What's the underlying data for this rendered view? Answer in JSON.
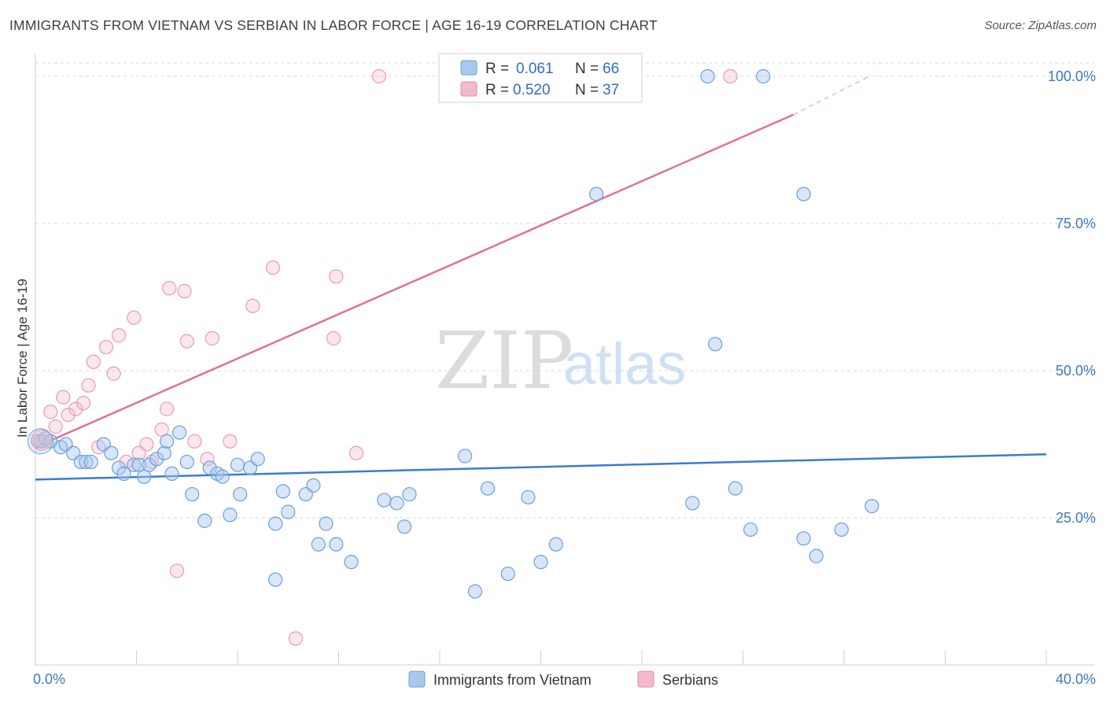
{
  "title": "IMMIGRANTS FROM VIETNAM VS SERBIAN IN LABOR FORCE | AGE 16-19 CORRELATION CHART",
  "source": "Source: ZipAtlas.com",
  "watermark": {
    "zip": "ZIP",
    "atlas": "atlas"
  },
  "colors": {
    "blue": "#3a7bd5",
    "blue_fill": "#a9c8ee",
    "pink": "#e07097",
    "pink_fill": "#f4b9cb",
    "tick": "#3b78c4",
    "grid": "#d9d9d9"
  },
  "legend": {
    "rows": [
      {
        "r_label": "R =",
        "r_value": "0.061",
        "n_label": "N =",
        "n_value": "66"
      },
      {
        "r_label": "R =",
        "r_value": "0.520",
        "n_label": "N =",
        "n_value": "37"
      }
    ]
  },
  "bottom_legend": [
    "Immigrants from Vietnam",
    "Serbians"
  ],
  "chart_data": {
    "type": "scatter",
    "title": "IMMIGRANTS FROM VIETNAM VS SERBIAN IN LABOR FORCE | AGE 16-19 CORRELATION CHART",
    "xlabel": "",
    "ylabel": "In Labor Force | Age 16-19",
    "xlim": [
      0,
      40
    ],
    "ylim": [
      0,
      100
    ],
    "x_tick_labels": [
      "0.0%",
      "40.0%"
    ],
    "y_tick_labels": [
      "25.0%",
      "50.0%",
      "75.0%",
      "100.0%"
    ],
    "y_ticks": [
      25,
      50,
      75,
      100
    ],
    "grid": true,
    "series": [
      {
        "name": "Immigrants from Vietnam",
        "color": "#3a7bd5",
        "points": [
          [
            0.2,
            38.0
          ],
          [
            0.4,
            38.5
          ],
          [
            0.6,
            38.0
          ],
          [
            1.0,
            37.0
          ],
          [
            1.2,
            37.5
          ],
          [
            1.5,
            36.0
          ],
          [
            1.8,
            34.5
          ],
          [
            2.0,
            34.5
          ],
          [
            2.7,
            37.5
          ],
          [
            3.0,
            36.0
          ],
          [
            3.3,
            33.5
          ],
          [
            3.5,
            32.5
          ],
          [
            3.9,
            34.0
          ],
          [
            4.1,
            34.0
          ],
          [
            4.3,
            32.0
          ],
          [
            4.5,
            34.0
          ],
          [
            4.8,
            35.0
          ],
          [
            5.1,
            36.0
          ],
          [
            5.2,
            38.0
          ],
          [
            5.4,
            32.5
          ],
          [
            5.7,
            39.5
          ],
          [
            6.0,
            34.5
          ],
          [
            6.2,
            29.0
          ],
          [
            6.7,
            24.5
          ],
          [
            6.9,
            33.5
          ],
          [
            7.2,
            32.5
          ],
          [
            7.4,
            32.0
          ],
          [
            7.7,
            25.5
          ],
          [
            8.0,
            34.0
          ],
          [
            8.1,
            29.0
          ],
          [
            8.5,
            33.5
          ],
          [
            8.8,
            35.0
          ],
          [
            9.5,
            24.0
          ],
          [
            9.5,
            14.5
          ],
          [
            9.8,
            29.5
          ],
          [
            10.0,
            26.0
          ],
          [
            10.7,
            29.0
          ],
          [
            11.0,
            30.5
          ],
          [
            11.2,
            20.5
          ],
          [
            11.5,
            24.0
          ],
          [
            11.9,
            20.5
          ],
          [
            12.5,
            17.5
          ],
          [
            13.8,
            28.0
          ],
          [
            14.3,
            27.5
          ],
          [
            14.6,
            23.5
          ],
          [
            14.8,
            29.0
          ],
          [
            17.0,
            35.5
          ],
          [
            17.4,
            12.5
          ],
          [
            17.9,
            30.0
          ],
          [
            18.7,
            15.5
          ],
          [
            19.5,
            28.5
          ],
          [
            20.0,
            17.5
          ],
          [
            20.6,
            20.5
          ],
          [
            22.2,
            80.0
          ],
          [
            26.0,
            27.5
          ],
          [
            26.9,
            54.5
          ],
          [
            27.7,
            30.0
          ],
          [
            26.6,
            100.0
          ],
          [
            28.3,
            23.0
          ],
          [
            28.8,
            100.0
          ],
          [
            30.4,
            21.5
          ],
          [
            30.4,
            80.0
          ],
          [
            30.9,
            18.5
          ],
          [
            31.9,
            23.0
          ],
          [
            33.1,
            27.0
          ],
          [
            2.2,
            34.5
          ]
        ],
        "trend": {
          "x": [
            0,
            40
          ],
          "y": [
            31.5,
            35.8
          ]
        }
      },
      {
        "name": "Serbians",
        "color": "#e07097",
        "points": [
          [
            0.1,
            38.0
          ],
          [
            0.3,
            38.0
          ],
          [
            0.6,
            43.0
          ],
          [
            0.8,
            40.5
          ],
          [
            1.1,
            45.5
          ],
          [
            1.3,
            42.5
          ],
          [
            1.6,
            43.5
          ],
          [
            1.9,
            44.5
          ],
          [
            2.1,
            47.5
          ],
          [
            2.3,
            51.5
          ],
          [
            2.5,
            37.0
          ],
          [
            2.8,
            54.0
          ],
          [
            3.1,
            49.5
          ],
          [
            3.3,
            56.0
          ],
          [
            3.6,
            34.5
          ],
          [
            3.9,
            59.0
          ],
          [
            4.1,
            36.0
          ],
          [
            4.4,
            37.5
          ],
          [
            4.6,
            34.5
          ],
          [
            5.0,
            40.0
          ],
          [
            5.2,
            43.5
          ],
          [
            5.3,
            64.0
          ],
          [
            5.6,
            16.0
          ],
          [
            5.9,
            63.5
          ],
          [
            6.0,
            55.0
          ],
          [
            6.3,
            38.0
          ],
          [
            6.8,
            35.0
          ],
          [
            7.0,
            55.5
          ],
          [
            7.7,
            38.0
          ],
          [
            8.6,
            61.0
          ],
          [
            9.4,
            67.5
          ],
          [
            10.3,
            4.5
          ],
          [
            11.8,
            55.5
          ],
          [
            11.9,
            66.0
          ],
          [
            12.7,
            36.0
          ],
          [
            13.6,
            100.0
          ],
          [
            27.5,
            100.0
          ]
        ],
        "trend": {
          "x": [
            0,
            30
          ],
          "y": [
            37.0,
            93.5
          ]
        },
        "trend_dashed": {
          "x": [
            30,
            33.0
          ],
          "y": [
            93.5,
            100.0
          ]
        }
      }
    ]
  }
}
